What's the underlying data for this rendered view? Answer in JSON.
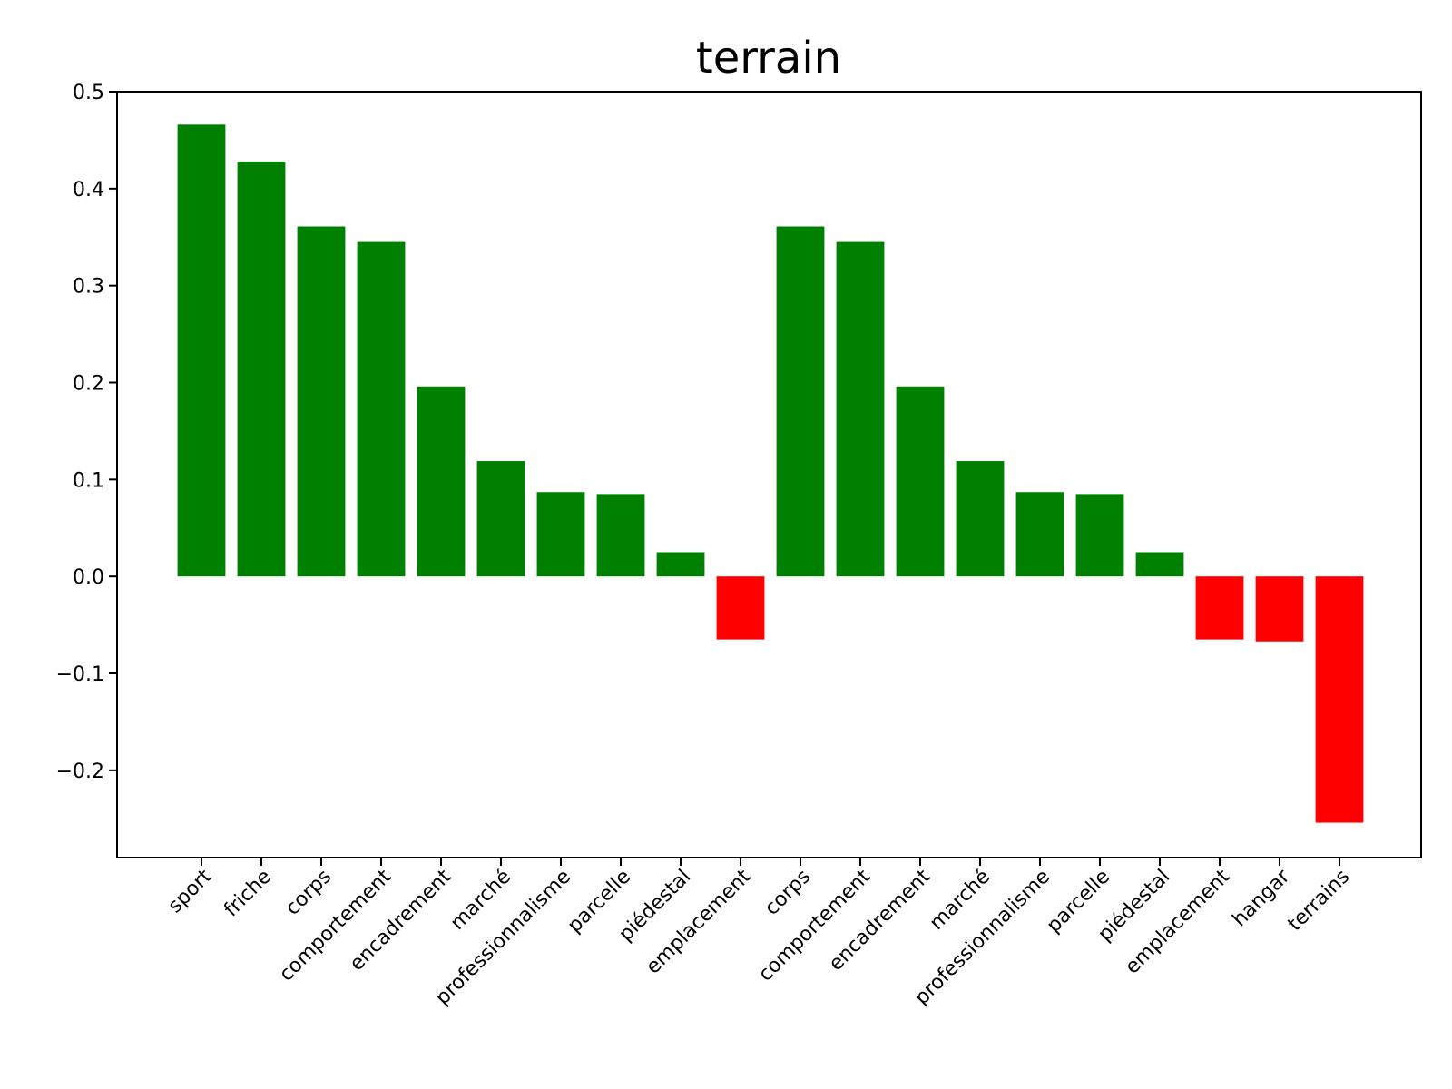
{
  "chart_data": {
    "type": "bar",
    "title": "terrain",
    "xlabel": "",
    "ylabel": "",
    "categories": [
      "sport",
      "friche",
      "corps",
      "comportement",
      "encadrement",
      "marché",
      "professionnalisme",
      "parcelle",
      "piédestal",
      "emplacement",
      "corps",
      "comportement",
      "encadrement",
      "marché",
      "professionnalisme",
      "parcelle",
      "piédestal",
      "emplacement",
      "hangar",
      "terrains"
    ],
    "values": [
      0.466,
      0.428,
      0.361,
      0.345,
      0.196,
      0.119,
      0.087,
      0.085,
      0.025,
      -0.065,
      0.361,
      0.345,
      0.196,
      0.119,
      0.087,
      0.085,
      0.025,
      -0.065,
      -0.067,
      -0.254
    ],
    "ylim": [
      -0.29,
      0.5
    ],
    "yticks": [
      -0.2,
      -0.1,
      0.0,
      0.1,
      0.2,
      0.3,
      0.4,
      0.5
    ],
    "ytick_labels": [
      "−0.2",
      "−0.1",
      "0.0",
      "0.1",
      "0.2",
      "0.3",
      "0.4",
      "0.5"
    ],
    "grid": false,
    "colors": {
      "positive": "#008000",
      "negative": "#ff0000"
    }
  }
}
